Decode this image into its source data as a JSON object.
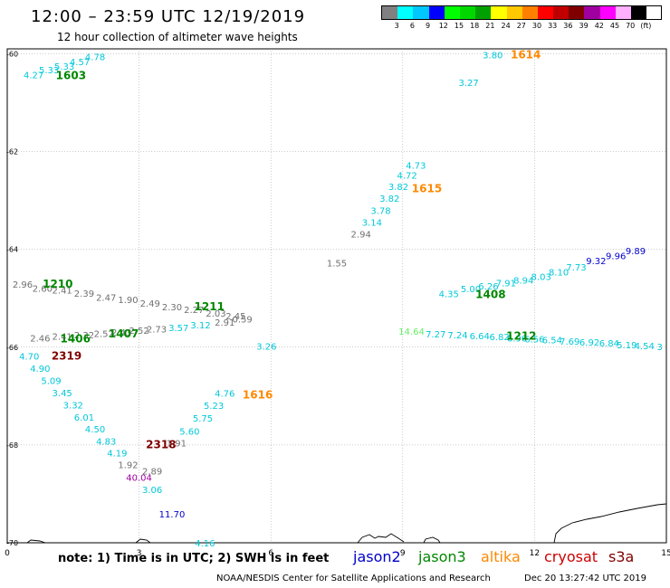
{
  "header": {
    "title": "12:00 – 23:59 UTC 12/19/2019",
    "subtitle": "12 hour collection of altimeter wave heights"
  },
  "scale": {
    "colors": [
      "#808080",
      "#00ffff",
      "#00c8ff",
      "#0000ff",
      "#00ff00",
      "#00d800",
      "#00a000",
      "#ffff00",
      "#ffc800",
      "#ff8000",
      "#ff0000",
      "#c00000",
      "#800000",
      "#a000a0",
      "#ff00ff",
      "#ffb0ff",
      "#000000"
    ],
    "tick_labels": [
      "3",
      "6",
      "9",
      "12",
      "15",
      "18",
      "21",
      "24",
      "27",
      "30",
      "33",
      "36",
      "39",
      "42",
      "45",
      "70",
      "(ft)"
    ]
  },
  "axes": {
    "x_ticks": [
      {
        "value": 0,
        "label": "0"
      },
      {
        "value": 3,
        "label": "3"
      },
      {
        "value": 6,
        "label": "6"
      },
      {
        "value": 9,
        "label": "9"
      },
      {
        "value": 12,
        "label": "12"
      },
      {
        "value": 15,
        "label": "15"
      }
    ],
    "y_ticks": [
      {
        "value": -60,
        "label": "-60"
      },
      {
        "value": -62,
        "label": "-62"
      },
      {
        "value": -64,
        "label": "-64"
      },
      {
        "value": -66,
        "label": "-66"
      },
      {
        "value": -68,
        "label": "-68"
      },
      {
        "value": -70,
        "label": "-70"
      }
    ]
  },
  "footer": {
    "note": "note: 1) Time is in UTC; 2) SWH is in feet",
    "legend": [
      {
        "name": "jason2",
        "color": "#0000cc"
      },
      {
        "name": "jason3",
        "color": "#008800"
      },
      {
        "name": "altika",
        "color": "#ff8800"
      },
      {
        "name": "cryosat",
        "color": "#cc0000"
      },
      {
        "name": "s3a",
        "color": "#800000"
      }
    ],
    "credit": "NOAA/NESDIS Center for Satellite Applications and Research",
    "generated": "Dec 20 13:27:42 UTC 2019"
  },
  "chart_data": {
    "type": "scatter",
    "xlim": [
      0,
      15
    ],
    "ylim": [
      -70,
      -59.9
    ],
    "grid": true,
    "time_labels": [
      {
        "text": "1603",
        "x": 1.45,
        "y": -60.52,
        "color": "#008800"
      },
      {
        "text": "1614",
        "x": 11.8,
        "y": -60.09,
        "color": "#ff8800"
      },
      {
        "text": "1615",
        "x": 9.55,
        "y": -62.83,
        "color": "#ff8800"
      },
      {
        "text": "1210",
        "x": 1.15,
        "y": -64.78,
        "color": "#008800"
      },
      {
        "text": "1211",
        "x": 4.6,
        "y": -65.25,
        "color": "#008800"
      },
      {
        "text": "1406",
        "x": 1.55,
        "y": -65.9,
        "color": "#008800"
      },
      {
        "text": "1407",
        "x": 2.65,
        "y": -65.8,
        "color": "#008800"
      },
      {
        "text": "2319",
        "x": 1.35,
        "y": -66.25,
        "color": "#800000"
      },
      {
        "text": "1408",
        "x": 11.0,
        "y": -65.0,
        "color": "#008800"
      },
      {
        "text": "1212",
        "x": 11.7,
        "y": -65.85,
        "color": "#008800"
      },
      {
        "text": "1616",
        "x": 5.7,
        "y": -67.05,
        "color": "#ff8800"
      },
      {
        "text": "2318",
        "x": 3.5,
        "y": -68.07,
        "color": "#800000"
      }
    ],
    "points": [
      {
        "x": 0.6,
        "y": -60.5,
        "v": "4.27",
        "color": "#00c8d8"
      },
      {
        "x": 0.95,
        "y": -60.4,
        "v": "5.33",
        "color": "#00c8d8"
      },
      {
        "x": 1.3,
        "y": -60.33,
        "v": "5.33",
        "color": "#00c8d8"
      },
      {
        "x": 1.65,
        "y": -60.23,
        "v": "4.57",
        "color": "#00c8d8"
      },
      {
        "x": 2.0,
        "y": -60.13,
        "v": "4.78",
        "color": "#00c8d8"
      },
      {
        "x": 11.05,
        "y": -60.09,
        "v": "3.80",
        "color": "#00c8d8"
      },
      {
        "x": 10.5,
        "y": -60.66,
        "v": "3.27",
        "color": "#00c8d8"
      },
      {
        "x": 9.3,
        "y": -62.35,
        "v": "4.73",
        "color": "#00c8d8"
      },
      {
        "x": 9.1,
        "y": -62.55,
        "v": "4.72",
        "color": "#00c8d8"
      },
      {
        "x": 8.9,
        "y": -62.79,
        "v": "3.82",
        "color": "#00c8d8"
      },
      {
        "x": 8.7,
        "y": -63.03,
        "v": "3.82",
        "color": "#00c8d8"
      },
      {
        "x": 8.5,
        "y": -63.28,
        "v": "3.78",
        "color": "#00c8d8"
      },
      {
        "x": 8.3,
        "y": -63.52,
        "v": "3.14",
        "color": "#00c8d8"
      },
      {
        "x": 8.05,
        "y": -63.76,
        "v": "2.94",
        "color": "#707070"
      },
      {
        "x": 7.5,
        "y": -64.35,
        "v": "1.55",
        "color": "#707070"
      },
      {
        "x": 0.35,
        "y": -64.78,
        "v": "2.96",
        "color": "#707070"
      },
      {
        "x": 0.8,
        "y": -64.87,
        "v": "2.60",
        "color": "#707070"
      },
      {
        "x": 1.25,
        "y": -64.9,
        "v": "2.41",
        "color": "#707070"
      },
      {
        "x": 1.75,
        "y": -64.97,
        "v": "2.39",
        "color": "#707070"
      },
      {
        "x": 2.25,
        "y": -65.05,
        "v": "2.47",
        "color": "#707070"
      },
      {
        "x": 2.75,
        "y": -65.1,
        "v": "1.90",
        "color": "#707070"
      },
      {
        "x": 3.25,
        "y": -65.17,
        "v": "2.49",
        "color": "#707070"
      },
      {
        "x": 3.75,
        "y": -65.25,
        "v": "2.30",
        "color": "#707070"
      },
      {
        "x": 4.25,
        "y": -65.3,
        "v": "2.27",
        "color": "#707070"
      },
      {
        "x": 4.75,
        "y": -65.38,
        "v": "2.03",
        "color": "#707070"
      },
      {
        "x": 5.2,
        "y": -65.43,
        "v": "2.45",
        "color": "#707070"
      },
      {
        "x": 0.75,
        "y": -65.88,
        "v": "2.46",
        "color": "#707070"
      },
      {
        "x": 1.25,
        "y": -65.85,
        "v": "2.41",
        "color": "#707070"
      },
      {
        "x": 1.75,
        "y": -65.82,
        "v": "2.32",
        "color": "#707070"
      },
      {
        "x": 2.2,
        "y": -65.79,
        "v": "2.52",
        "color": "#707070"
      },
      {
        "x": 2.6,
        "y": -65.76,
        "v": "2.43",
        "color": "#707070"
      },
      {
        "x": 3.0,
        "y": -65.73,
        "v": "2.52",
        "color": "#707070"
      },
      {
        "x": 3.4,
        "y": -65.7,
        "v": "2.73",
        "color": "#707070"
      },
      {
        "x": 3.9,
        "y": -65.67,
        "v": "3.57",
        "color": "#00c8d8"
      },
      {
        "x": 4.4,
        "y": -65.62,
        "v": "3.12",
        "color": "#00c8d8"
      },
      {
        "x": 4.95,
        "y": -65.56,
        "v": "2.91",
        "color": "#707070"
      },
      {
        "x": 5.35,
        "y": -65.5,
        "v": "0.59",
        "color": "#707070"
      },
      {
        "x": 5.9,
        "y": -66.05,
        "v": "3.26",
        "color": "#00c8d8"
      },
      {
        "x": 0.5,
        "y": -66.25,
        "v": "4.70",
        "color": "#00c8d8"
      },
      {
        "x": 0.75,
        "y": -66.5,
        "v": "4.90",
        "color": "#00c8d8"
      },
      {
        "x": 1.0,
        "y": -66.75,
        "v": "5.09",
        "color": "#00c8d8"
      },
      {
        "x": 1.25,
        "y": -67.0,
        "v": "3.45",
        "color": "#00c8d8"
      },
      {
        "x": 1.5,
        "y": -67.25,
        "v": "3.32",
        "color": "#00c8d8"
      },
      {
        "x": 1.75,
        "y": -67.5,
        "v": "6.01",
        "color": "#00c8d8"
      },
      {
        "x": 2.0,
        "y": -67.74,
        "v": "4.50",
        "color": "#00c8d8"
      },
      {
        "x": 2.25,
        "y": -67.99,
        "v": "4.83",
        "color": "#00c8d8"
      },
      {
        "x": 2.5,
        "y": -68.23,
        "v": "4.19",
        "color": "#00c8d8"
      },
      {
        "x": 2.75,
        "y": -68.47,
        "v": "1.92",
        "color": "#707070"
      },
      {
        "x": 3.0,
        "y": -68.73,
        "v": "40.04",
        "color": "#a000a0"
      },
      {
        "x": 3.3,
        "y": -68.6,
        "v": "2.89",
        "color": "#707070"
      },
      {
        "x": 3.3,
        "y": -68.98,
        "v": "3.06",
        "color": "#00c8d8"
      },
      {
        "x": 3.75,
        "y": -69.48,
        "v": "11.70",
        "color": "#0000cc"
      },
      {
        "x": 4.5,
        "y": -70.07,
        "v": "4.16",
        "color": "#00c8d8"
      },
      {
        "x": 3.85,
        "y": -68.03,
        "v": "1.91",
        "color": "#707070"
      },
      {
        "x": 4.15,
        "y": -67.79,
        "v": "5.60",
        "color": "#00c8d8"
      },
      {
        "x": 4.45,
        "y": -67.52,
        "v": "5.75",
        "color": "#00c8d8"
      },
      {
        "x": 4.7,
        "y": -67.26,
        "v": "5.23",
        "color": "#00c8d8"
      },
      {
        "x": 4.95,
        "y": -67.01,
        "v": "4.76",
        "color": "#00c8d8"
      },
      {
        "x": 10.05,
        "y": -64.98,
        "v": "4.35",
        "color": "#00c8d8"
      },
      {
        "x": 10.55,
        "y": -64.88,
        "v": "5.00",
        "color": "#00c8d8"
      },
      {
        "x": 10.95,
        "y": -64.82,
        "v": "6.26",
        "color": "#00c8d8"
      },
      {
        "x": 11.35,
        "y": -64.76,
        "v": "7.91",
        "color": "#00c8d8"
      },
      {
        "x": 11.75,
        "y": -64.7,
        "v": "8.94",
        "color": "#00c8d8"
      },
      {
        "x": 12.15,
        "y": -64.63,
        "v": "8.03",
        "color": "#00c8d8"
      },
      {
        "x": 12.55,
        "y": -64.53,
        "v": "8.10",
        "color": "#00c8d8"
      },
      {
        "x": 12.95,
        "y": -64.43,
        "v": "7.73",
        "color": "#00c8d8"
      },
      {
        "x": 13.4,
        "y": -64.3,
        "v": "9.32",
        "color": "#0000cc"
      },
      {
        "x": 13.85,
        "y": -64.2,
        "v": "9.96",
        "color": "#0000cc"
      },
      {
        "x": 14.3,
        "y": -64.1,
        "v": "9.89",
        "color": "#0000cc"
      },
      {
        "x": 9.2,
        "y": -65.75,
        "v": "14.64",
        "color": "#66ee66"
      },
      {
        "x": 9.75,
        "y": -65.8,
        "v": "7.27",
        "color": "#00c8d8"
      },
      {
        "x": 10.25,
        "y": -65.82,
        "v": "7.24",
        "color": "#00c8d8"
      },
      {
        "x": 10.75,
        "y": -65.84,
        "v": "6.64",
        "color": "#00c8d8"
      },
      {
        "x": 11.2,
        "y": -65.86,
        "v": "6.82",
        "color": "#00c8d8"
      },
      {
        "x": 11.6,
        "y": -65.88,
        "v": "6.96",
        "color": "#00c8d8"
      },
      {
        "x": 12.0,
        "y": -65.9,
        "v": "6.56",
        "color": "#00c8d8"
      },
      {
        "x": 12.4,
        "y": -65.92,
        "v": "6.54",
        "color": "#00c8d8"
      },
      {
        "x": 12.8,
        "y": -65.95,
        "v": "7.69",
        "color": "#00c8d8"
      },
      {
        "x": 13.25,
        "y": -65.97,
        "v": "6.92",
        "color": "#00c8d8"
      },
      {
        "x": 13.7,
        "y": -65.99,
        "v": "6.84",
        "color": "#00c8d8"
      },
      {
        "x": 14.1,
        "y": -66.02,
        "v": "5.19",
        "color": "#00c8d8"
      },
      {
        "x": 14.5,
        "y": -66.04,
        "v": "4.54",
        "color": "#00c8d8"
      },
      {
        "x": 14.85,
        "y": -66.06,
        "v": "3",
        "color": "#00c8d8"
      }
    ]
  }
}
